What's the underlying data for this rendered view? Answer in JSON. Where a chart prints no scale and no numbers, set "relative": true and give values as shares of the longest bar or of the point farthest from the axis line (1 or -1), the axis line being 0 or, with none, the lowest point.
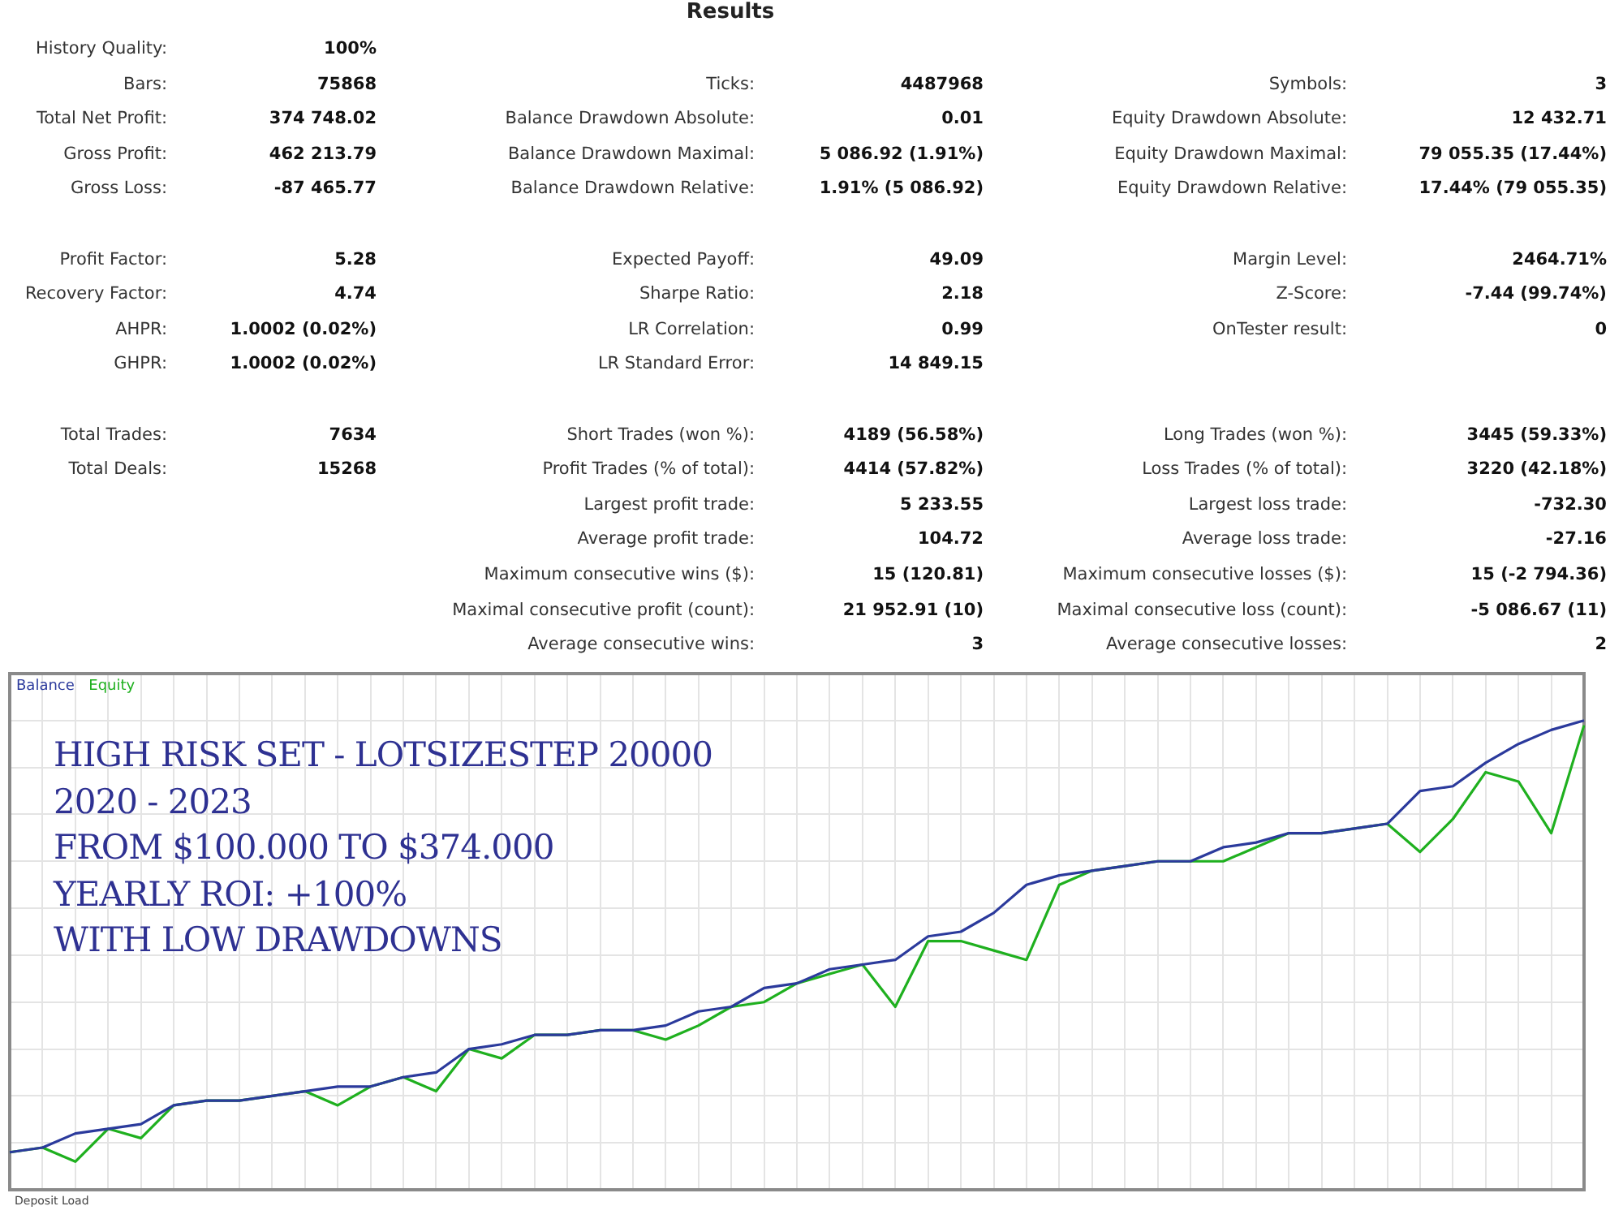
{
  "chart_data": [
    {
      "type": "other",
      "title": "Results",
      "annotations": [
        "History Quality:",
        "100%",
        "Bars:",
        "75868",
        "Ticks:",
        "4487968",
        "Symbols:",
        "3",
        "Total Net Profit:",
        "374 748.02",
        "Balance Drawdown Absolute:",
        "0.01",
        "Equity Drawdown Absolute:",
        "12 432.71",
        "Gross Profit:",
        "462 213.79",
        "Balance Drawdown Maximal:",
        "5 086.92 (1.91%)",
        "Equity Drawdown Maximal:",
        "79 055.35 (17.44%)",
        "Gross Loss:",
        "-87 465.77",
        "Balance Drawdown Relative:",
        "1.91% (5 086.92)",
        "Equity Drawdown Relative:",
        "17.44% (79 055.35)",
        "Profit Factor:",
        "5.28",
        "Expected Payoff:",
        "49.09",
        "Margin Level:",
        "2464.71%",
        "Recovery Factor:",
        "4.74",
        "Sharpe Ratio:",
        "2.18",
        "Z-Score:",
        "-7.44 (99.74%)",
        "AHPR:",
        "1.0002 (0.02%)",
        "LR Correlation:",
        "0.99",
        "OnTester result:",
        "0",
        "GHPR:",
        "1.0002 (0.02%)",
        "LR Standard Error:",
        "14 849.15",
        "Total Trades:",
        "7634",
        "Short Trades (won %):",
        "4189 (56.58%)",
        "Long Trades (won %):",
        "3445 (59.33%)",
        "Total Deals:",
        "15268",
        "Profit Trades (% of total):",
        "4414 (57.82%)",
        "Loss Trades (% of total):",
        "3220 (42.18%)",
        "Largest profit trade:",
        "5 233.55",
        "Largest loss trade:",
        "-732.30",
        "Average profit trade:",
        "104.72",
        "Average loss trade:",
        "-27.16",
        "Maximum consecutive wins ($):",
        "15 (120.81)",
        "Maximum consecutive losses ($):",
        "15 (-2 794.36)",
        "Maximal consecutive profit (count):",
        "21 952.91 (10)",
        "Maximal consecutive loss (count):",
        "-5 086.67 (11)",
        "Average consecutive wins:",
        "3",
        "Average consecutive losses:",
        "2"
      ]
    },
    {
      "type": "line",
      "relative": true,
      "grid": true,
      "legend": "top left",
      "marker": "none",
      "categories": [
        null,
        null,
        null,
        null,
        null,
        null,
        null,
        null,
        null,
        null,
        null,
        null,
        null,
        null,
        null,
        null,
        null,
        null,
        null,
        null,
        null,
        null,
        null,
        null,
        null,
        null,
        null,
        null,
        null,
        null,
        null,
        null,
        null,
        null,
        null,
        null,
        null,
        null,
        null,
        null,
        null,
        null,
        null,
        null,
        null,
        null,
        null,
        null,
        null
      ],
      "series": [
        {
          "name": "Balance",
          "color": "#2b3a9c",
          "values": [
            0.08,
            0.09,
            0.12,
            0.13,
            0.14,
            0.18,
            0.19,
            0.19,
            0.2,
            0.21,
            0.22,
            0.22,
            0.24,
            0.25,
            0.3,
            0.31,
            0.33,
            0.33,
            0.34,
            0.34,
            0.35,
            0.38,
            0.39,
            0.43,
            0.44,
            0.47,
            0.48,
            0.49,
            0.54,
            0.55,
            0.59,
            0.65,
            0.67,
            0.68,
            0.69,
            0.7,
            0.7,
            0.73,
            0.74,
            0.76,
            0.76,
            0.77,
            0.78,
            0.85,
            0.86,
            0.91,
            0.95,
            0.98,
            1.0
          ]
        },
        {
          "name": "Equity",
          "color": "#1fb01f",
          "values": [
            0.08,
            0.09,
            0.06,
            0.13,
            0.11,
            0.18,
            0.19,
            0.19,
            0.2,
            0.21,
            0.18,
            0.22,
            0.24,
            0.21,
            0.3,
            0.28,
            0.33,
            0.33,
            0.34,
            0.34,
            0.32,
            0.35,
            0.39,
            0.4,
            0.44,
            0.46,
            0.48,
            0.39,
            0.53,
            0.53,
            0.51,
            0.49,
            0.65,
            0.68,
            0.69,
            0.7,
            0.7,
            0.7,
            0.73,
            0.76,
            0.76,
            0.77,
            0.78,
            0.72,
            0.79,
            0.89,
            0.87,
            0.76,
            0.99
          ]
        }
      ],
      "annotations": [
        "HIGH RISK SET - LOTSIZESTEP 20000",
        "2020 - 2023",
        "FROM $100.000 TO $374.000",
        "YEARLY ROI: +100%",
        "WITH LOW DRAWDOWNS",
        "Deposit Load"
      ]
    }
  ]
}
